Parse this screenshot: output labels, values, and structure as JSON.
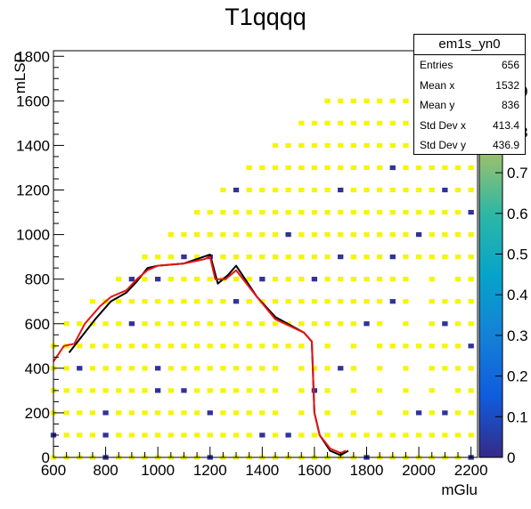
{
  "title": "T1qqqq",
  "stats": {
    "name": "em1s_yn0",
    "rows": [
      {
        "label": "Entries",
        "value": "656"
      },
      {
        "label": "Mean x",
        "value": "1532"
      },
      {
        "label": "Mean y",
        "value": "836"
      },
      {
        "label": "Std Dev x",
        "value": "413.4"
      },
      {
        "label": "Std Dev y",
        "value": "436.9"
      }
    ]
  },
  "chart_data": {
    "type": "heatmap",
    "xlabel": "mGlu",
    "ylabel": "mLSP",
    "xlim": [
      600,
      2225
    ],
    "ylim": [
      0,
      1825
    ],
    "xticks": [
      600,
      800,
      1000,
      1200,
      1400,
      1600,
      1800,
      2000,
      2200
    ],
    "yticks": [
      0,
      200,
      400,
      600,
      800,
      1000,
      1200,
      1400,
      1600,
      1800
    ],
    "zlim": [
      0,
      1
    ],
    "zticks": [
      "0",
      "0.1",
      "0.2",
      "0.3",
      "0.4",
      "0.5",
      "0.6",
      "0.7",
      "0.8",
      "0.9"
    ],
    "grid": false,
    "colors": {
      "high": "#f5f50a",
      "low": "#323296",
      "contour_expected": "#000000",
      "contour_observed": "#e61414"
    },
    "cells": {
      "bin_size": 25,
      "x_start": 600,
      "x_end": 2200,
      "x_step": 100,
      "y_start": 0,
      "y_step": 100,
      "max_mlsp_rule": "mLSP <= mGlu - 25, capped at 1600",
      "holes": [
        [
          1500,
          200
        ],
        [
          1500,
          300
        ],
        [
          1500,
          400
        ],
        [
          1600,
          500
        ],
        [
          1700,
          500
        ],
        [
          1800,
          500
        ],
        [
          1900,
          600
        ],
        [
          2000,
          600
        ],
        [
          2000,
          700
        ],
        [
          1800,
          400
        ],
        [
          1900,
          400
        ],
        [
          2000,
          400
        ],
        [
          1700,
          300
        ],
        [
          1800,
          300
        ],
        [
          1900,
          300
        ],
        [
          1600,
          200
        ],
        [
          1700,
          200
        ],
        [
          1800,
          200
        ],
        [
          1900,
          200
        ],
        [
          2000,
          300
        ],
        [
          2100,
          300
        ],
        [
          2000,
          800
        ],
        [
          2100,
          800
        ]
      ],
      "low_value": [
        [
          600,
          100
        ],
        [
          700,
          400
        ],
        [
          800,
          0
        ],
        [
          800,
          100
        ],
        [
          800,
          200
        ],
        [
          900,
          800
        ],
        [
          1000,
          800
        ],
        [
          1000,
          400
        ],
        [
          1000,
          300
        ],
        [
          1100,
          900
        ],
        [
          1100,
          300
        ],
        [
          1200,
          900
        ],
        [
          1200,
          200
        ],
        [
          1200,
          0
        ],
        [
          1300,
          700
        ],
        [
          1400,
          800
        ],
        [
          1400,
          100
        ],
        [
          1500,
          100
        ],
        [
          1600,
          800
        ],
        [
          1700,
          900
        ],
        [
          1700,
          400
        ],
        [
          1800,
          0
        ],
        [
          1800,
          600
        ],
        [
          1900,
          900
        ],
        [
          1900,
          700
        ],
        [
          2000,
          1000
        ],
        [
          2000,
          200
        ],
        [
          2100,
          1200
        ],
        [
          2100,
          600
        ],
        [
          2100,
          200
        ],
        [
          2200,
          0
        ],
        [
          2200,
          500
        ],
        [
          2200,
          1100
        ],
        [
          1300,
          1200
        ],
        [
          1400,
          1400
        ],
        [
          1700,
          1200
        ],
        [
          1900,
          1300
        ],
        [
          2100,
          1500
        ],
        [
          1600,
          300
        ],
        [
          1500,
          1000
        ],
        [
          900,
          600
        ]
      ]
    },
    "contours": [
      {
        "name": "expected",
        "x": [
          660,
          700,
          760,
          820,
          880,
          920,
          960,
          1000,
          1100,
          1200,
          1230,
          1270,
          1300,
          1380,
          1450,
          1560,
          1590,
          1600,
          1620,
          1660,
          1700,
          1730
        ],
        "y": [
          470,
          530,
          620,
          700,
          740,
          790,
          850,
          860,
          870,
          910,
          780,
          820,
          860,
          720,
          630,
          560,
          520,
          200,
          100,
          30,
          10,
          30
        ]
      },
      {
        "name": "observed",
        "x": [
          600,
          640,
          680,
          720,
          780,
          820,
          880,
          920,
          960,
          1000,
          1100,
          1180,
          1200,
          1220,
          1260,
          1300,
          1380,
          1450,
          1560,
          1590,
          1600,
          1620,
          1660,
          1700,
          1720
        ],
        "y": [
          430,
          500,
          510,
          600,
          680,
          720,
          750,
          800,
          840,
          860,
          870,
          890,
          900,
          800,
          800,
          840,
          720,
          620,
          560,
          520,
          200,
          100,
          40,
          20,
          30
        ]
      }
    ]
  }
}
